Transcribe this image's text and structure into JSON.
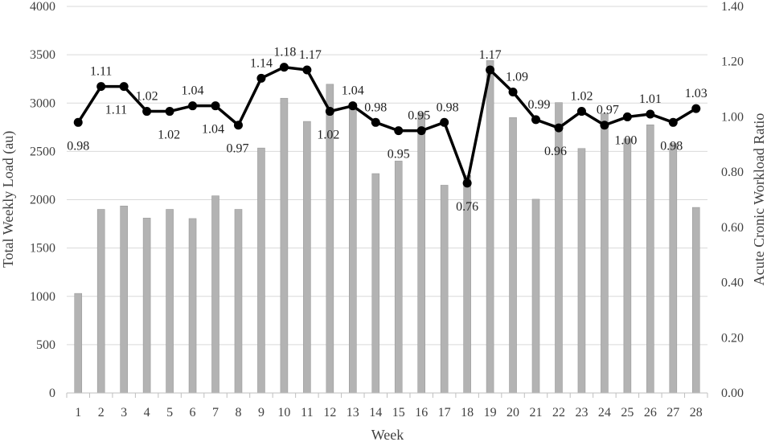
{
  "chart_data": {
    "type": "bar",
    "title": "",
    "xlabel": "Week",
    "ylabel": "Total Weekly Load (au)",
    "y2label": "Acute Cronic Workload Ratio",
    "categories": [
      "1",
      "2",
      "3",
      "4",
      "5",
      "6",
      "7",
      "8",
      "9",
      "10",
      "11",
      "12",
      "13",
      "14",
      "15",
      "16",
      "17",
      "18",
      "19",
      "20",
      "21",
      "22",
      "23",
      "24",
      "25",
      "26",
      "27",
      "28"
    ],
    "ylim": [
      0,
      4000
    ],
    "yticks": [
      "0",
      "500",
      "1000",
      "1500",
      "2000",
      "2500",
      "3000",
      "3500",
      "4000"
    ],
    "y2lim": [
      0,
      1.4
    ],
    "y2ticks": [
      "0.00",
      "0.20",
      "0.40",
      "0.60",
      "0.80",
      "1.00",
      "1.20",
      "1.40"
    ],
    "grid": true,
    "series": [
      {
        "type": "bar",
        "axis": "left",
        "color": "#b3b3b3",
        "values": [
          1030,
          1900,
          1935,
          1810,
          1900,
          1805,
          2040,
          1900,
          2535,
          3050,
          2810,
          3195,
          3000,
          2270,
          2400,
          2900,
          2150,
          2250,
          3440,
          2850,
          2005,
          3005,
          2530,
          2890,
          2630,
          2775,
          2580,
          1920
        ]
      },
      {
        "type": "line",
        "axis": "right",
        "color": "#000000",
        "values": [
          0.98,
          1.11,
          1.11,
          1.02,
          1.02,
          1.04,
          1.04,
          0.97,
          1.14,
          1.18,
          1.17,
          1.02,
          1.04,
          0.98,
          0.95,
          0.95,
          0.98,
          0.76,
          1.17,
          1.09,
          0.99,
          0.96,
          1.02,
          0.97,
          1.0,
          1.01,
          0.98,
          1.03
        ],
        "labels": [
          "0.98",
          "1.11",
          "1.11",
          "1.02",
          "1.02",
          "1.04",
          "1.04",
          "0.97",
          "1.14",
          "1.18",
          "1.17",
          "1.02",
          "1.04",
          "0.98",
          "0.95",
          "0.95",
          "0.98",
          "0.76",
          "1.17",
          "1.09",
          "0.99",
          "0.96",
          "1.02",
          "0.97",
          "1.00",
          "1.01",
          "0.98",
          "1.03"
        ]
      }
    ]
  }
}
